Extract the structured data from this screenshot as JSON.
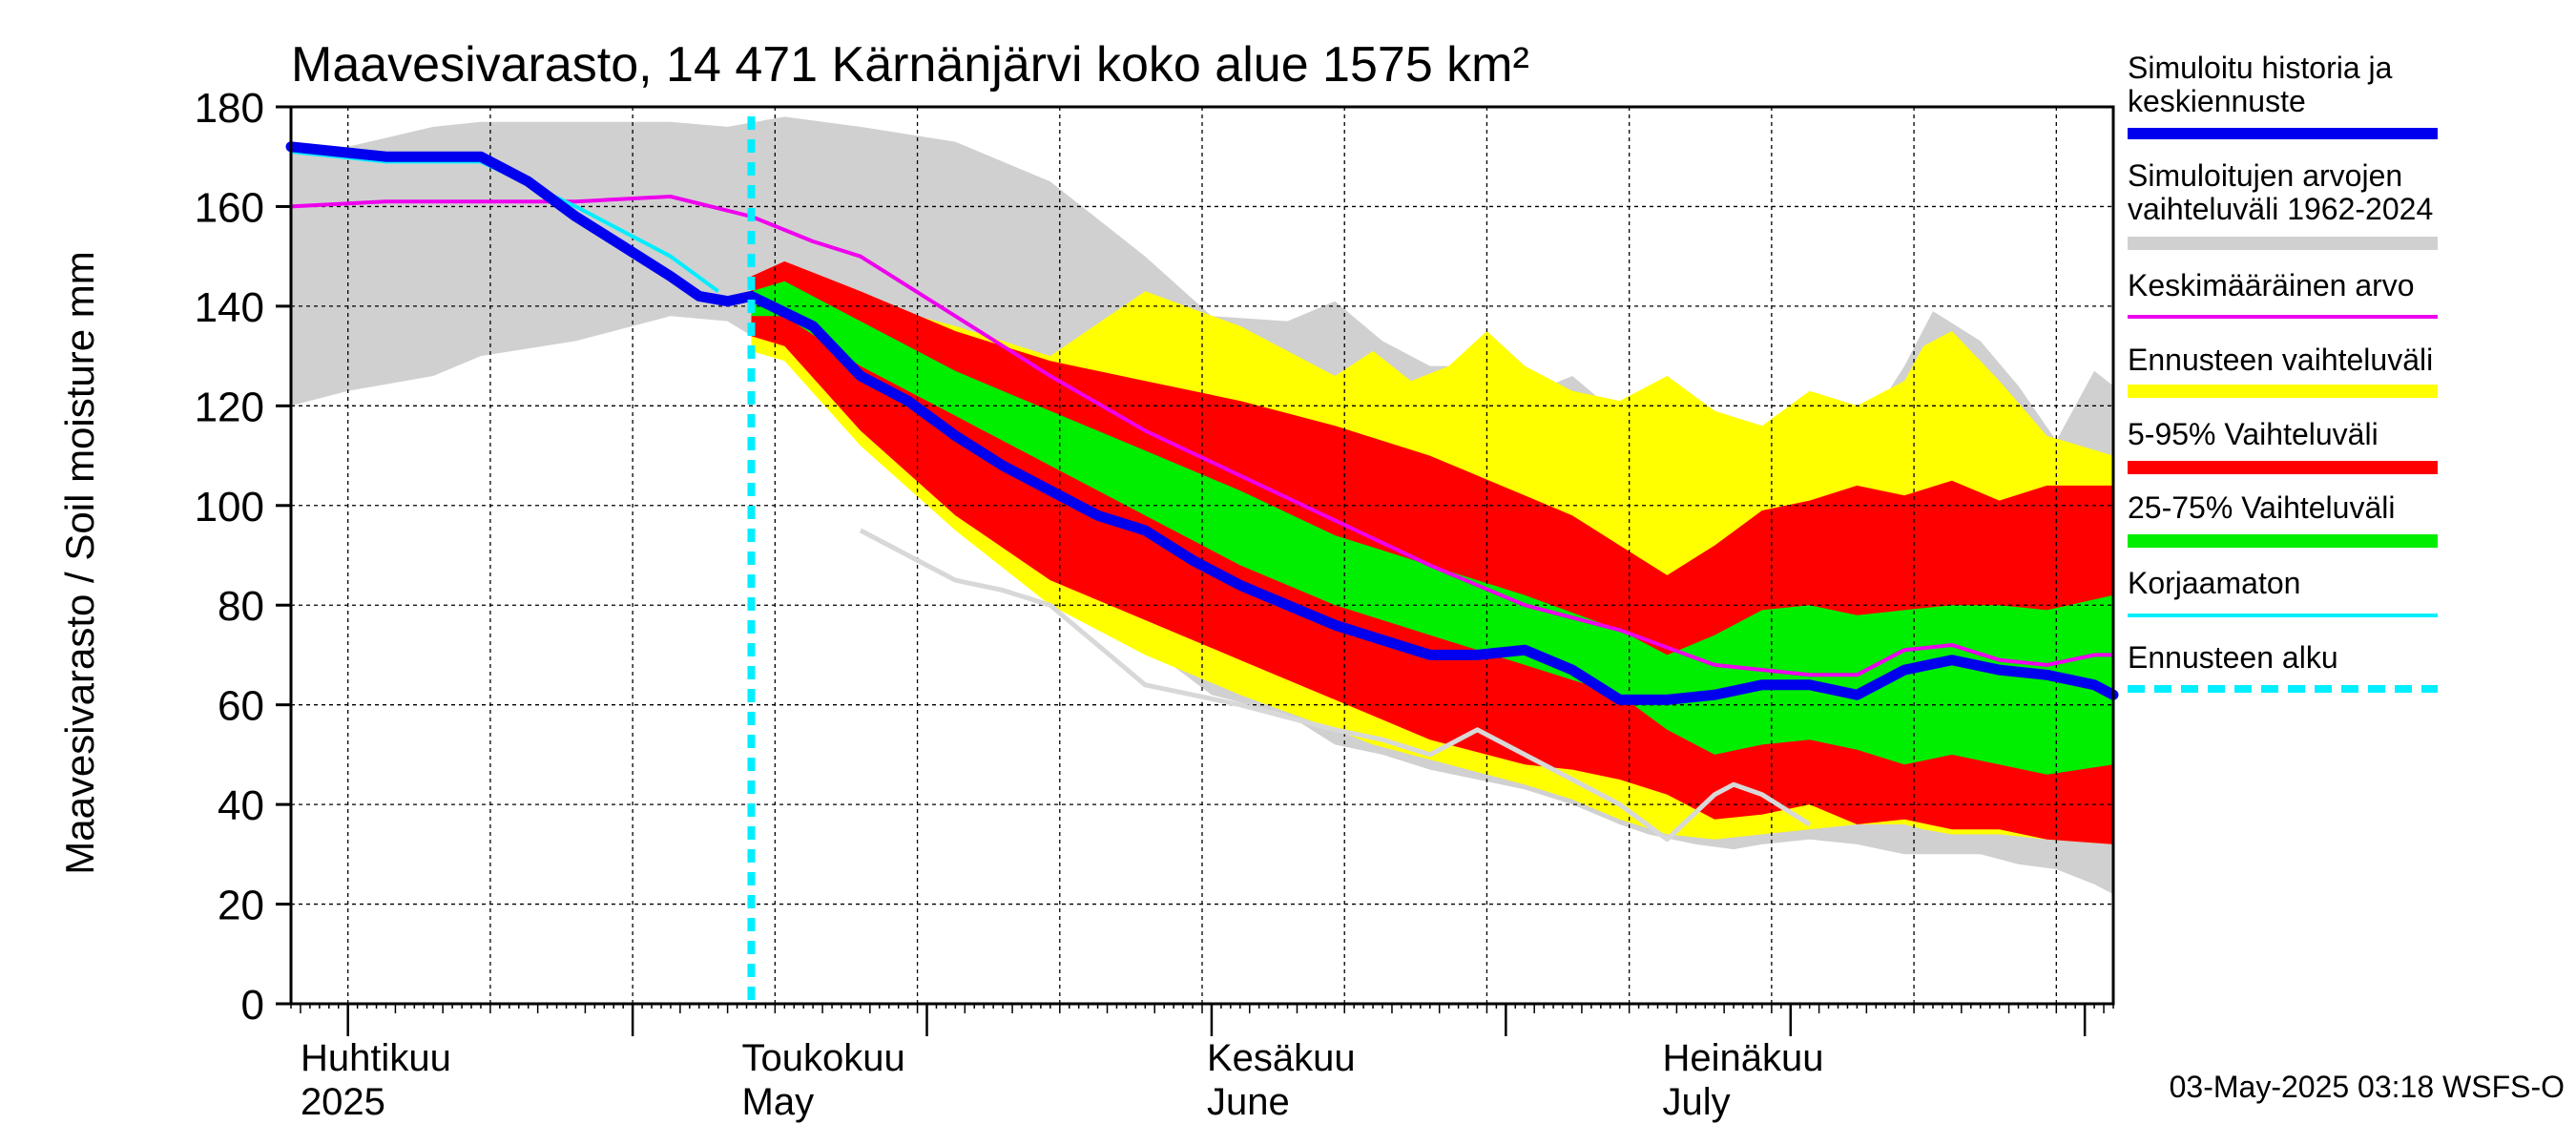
{
  "chart_data": {
    "type": "area",
    "title": "Maavesivarasto, 14 471 Kärnänjärvi koko alue 1575 km²",
    "ylabel": "Maavesivarasto / Soil moisture   mm",
    "ylim": [
      0,
      180
    ],
    "yticks": [
      0,
      20,
      40,
      60,
      80,
      100,
      120,
      140,
      160,
      180
    ],
    "x_unit": "days since 2025-03-26",
    "xlim": [
      0,
      192
    ],
    "forecast_start_day": 48.5,
    "month_labels": [
      {
        "day": 1,
        "fi": "Huhtikuu",
        "en": "2025"
      },
      {
        "day": 47.5,
        "fi": "Toukokuu",
        "en": "May"
      },
      {
        "day": 96.5,
        "fi": "Kesäkuu",
        "en": "June"
      },
      {
        "day": 144.5,
        "fi": "Heinäkuu",
        "en": "July"
      }
    ],
    "month_boundaries": [
      6,
      36,
      67,
      97,
      128,
      158,
      189
    ],
    "footer": "03-May-2025 03:18 WSFS-O",
    "legend": [
      {
        "label": "Simuloitu historia ja keskiennuste",
        "lines": [
          "Simuloitu historia ja",
          "keskiennuste"
        ],
        "color": "#0000ee"
      },
      {
        "label": "Simuloitujen arvojen vaihteluväli 1962-2024",
        "lines": [
          "Simuloitujen arvojen",
          "vaihteluväli 1962-2024"
        ],
        "color": "#d0d0d0"
      },
      {
        "label": "Keskimääräinen arvo",
        "lines": [
          "Keskimääräinen arvo"
        ],
        "color": "#ee00ee"
      },
      {
        "label": "Ennusteen vaihteluväli",
        "lines": [
          "Ennusteen vaihteluväli"
        ],
        "color": "#ffff00"
      },
      {
        "label": "5-95% Vaihteluväli",
        "lines": [
          "5-95% Vaihteluväli"
        ],
        "color": "#ff0000"
      },
      {
        "label": "25-75% Vaihteluväli",
        "lines": [
          "25-75% Vaihteluväli"
        ],
        "color": "#00ee00"
      },
      {
        "label": "Korjaamaton",
        "lines": [
          "Korjaamaton"
        ],
        "color": "#00eeff"
      },
      {
        "label": "Ennusteen alku",
        "lines": [
          "Ennusteen alku"
        ],
        "color": "#00eeff"
      }
    ],
    "series": {
      "hist_range": {
        "x": [
          0,
          6,
          15,
          20,
          30,
          40,
          46,
          52,
          60,
          70,
          80,
          90,
          97,
          105,
          110,
          115,
          120,
          125,
          130,
          135,
          140,
          143,
          148,
          152,
          155,
          160,
          165,
          170,
          173,
          178,
          182,
          186,
          190,
          192
        ],
        "hi": [
          171,
          172,
          176,
          177,
          177,
          177,
          176,
          178,
          176,
          173,
          165,
          150,
          138,
          137,
          141,
          133,
          128,
          128,
          122,
          126,
          118,
          115,
          112,
          113,
          116,
          109,
          113,
          128,
          139,
          133,
          124,
          113,
          127,
          124
        ],
        "lo": [
          120,
          123,
          126,
          130,
          133,
          138,
          137,
          130,
          115,
          98,
          85,
          72,
          62,
          58,
          52,
          50,
          47,
          45,
          43,
          40,
          36,
          34,
          32,
          31,
          32,
          33,
          32,
          30,
          30,
          30,
          28,
          27,
          24,
          22
        ]
      },
      "forecast_range": {
        "x": [
          48.5,
          52,
          60,
          70,
          80,
          90,
          100,
          110,
          114,
          118,
          122,
          126,
          130,
          135,
          140,
          145,
          150,
          155,
          160,
          165,
          170,
          172,
          175,
          180,
          185,
          192
        ],
        "hi": [
          145,
          149,
          141,
          136,
          130,
          143,
          136,
          126,
          131,
          125,
          128,
          135,
          128,
          123,
          121,
          126,
          119,
          116,
          123,
          120,
          125,
          132,
          135,
          125,
          114,
          110
        ],
        "lo": [
          131,
          129,
          112,
          95,
          80,
          70,
          62,
          55,
          52,
          50,
          48,
          46,
          44,
          41,
          37,
          34,
          33,
          34,
          35,
          36,
          36,
          35,
          34,
          34,
          33,
          32
        ]
      },
      "p5_95": {
        "x": [
          48.5,
          52,
          60,
          70,
          80,
          90,
          100,
          110,
          120,
          130,
          135,
          140,
          145,
          150,
          155,
          160,
          165,
          170,
          175,
          180,
          185,
          192
        ],
        "hi": [
          146,
          149,
          143,
          135,
          129,
          125,
          121,
          116,
          110,
          102,
          98,
          92,
          86,
          92,
          99,
          101,
          104,
          102,
          105,
          101,
          104,
          104
        ],
        "lo": [
          134,
          132,
          115,
          98,
          85,
          77,
          69,
          61,
          53,
          48,
          47,
          45,
          42,
          37,
          38,
          40,
          36,
          37,
          35,
          35,
          33,
          32
        ]
      },
      "p25_75": {
        "x": [
          48.5,
          52,
          60,
          70,
          80,
          90,
          100,
          110,
          120,
          130,
          140,
          145,
          150,
          155,
          160,
          165,
          170,
          175,
          180,
          185,
          192
        ],
        "hi": [
          143,
          145,
          137,
          127,
          119,
          111,
          103,
          94,
          88,
          82,
          75,
          70,
          74,
          79,
          80,
          78,
          79,
          80,
          80,
          79,
          82
        ],
        "lo": [
          138,
          138,
          128,
          118,
          108,
          98,
          88,
          80,
          74,
          68,
          62,
          55,
          50,
          52,
          53,
          51,
          48,
          50,
          48,
          46,
          48
        ]
      },
      "mean": {
        "x": [
          0,
          10,
          20,
          30,
          40,
          48.5,
          55,
          60,
          70,
          80,
          90,
          100,
          110,
          120,
          130,
          140,
          150,
          160,
          165,
          170,
          175,
          180,
          185,
          190,
          192
        ],
        "y": [
          160,
          161,
          161,
          161,
          162,
          158,
          153,
          150,
          138,
          126,
          115,
          106,
          97,
          88,
          80,
          75,
          68,
          66,
          66,
          71,
          72,
          69,
          68,
          70,
          70
        ]
      },
      "uncorrected": {
        "x": [
          0,
          10,
          20,
          30,
          40,
          45
        ],
        "y": [
          171,
          169,
          169,
          160,
          150,
          143
        ]
      },
      "hist_sim": {
        "x": [
          0,
          5,
          10,
          15,
          20,
          25,
          30,
          35,
          40,
          43,
          46,
          48.5,
          55,
          60,
          65,
          70,
          75,
          80,
          85,
          90,
          95,
          100,
          105,
          110,
          115,
          120,
          125,
          130,
          135,
          140,
          145,
          150,
          155,
          160,
          165,
          170,
          175,
          180,
          185,
          190,
          192
        ],
        "y": [
          172,
          171,
          170,
          170,
          170,
          165,
          158,
          152,
          146,
          142,
          141,
          142,
          136,
          126,
          121,
          114,
          108,
          103,
          98,
          95,
          89,
          84,
          80,
          76,
          73,
          70,
          70,
          71,
          67,
          61,
          61,
          62,
          64,
          64,
          62,
          67,
          69,
          67,
          66,
          64,
          62
        ]
      },
      "low_trace": {
        "x": [
          60,
          65,
          70,
          75,
          80,
          85,
          90,
          95,
          100,
          110,
          115,
          120,
          125,
          130,
          135,
          140,
          145,
          150,
          152,
          155,
          160
        ],
        "y": [
          95,
          90,
          85,
          83,
          80,
          72,
          64,
          62,
          60,
          55,
          53,
          50,
          55,
          50,
          45,
          40,
          33,
          42,
          44,
          42,
          36
        ]
      }
    }
  }
}
